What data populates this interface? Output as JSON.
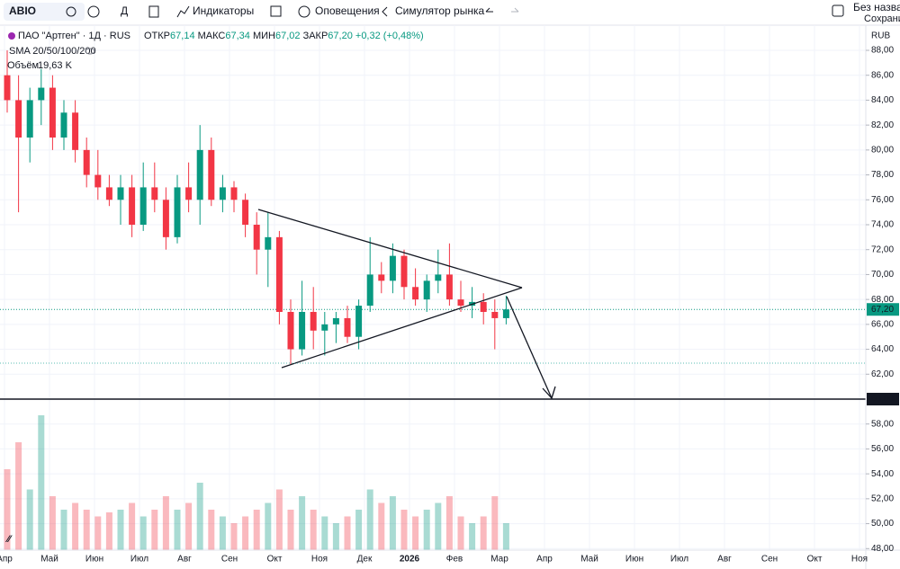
{
  "toolbar": {
    "symbol": "ABIO",
    "interval": "Д",
    "indicators": "Индикаторы",
    "alerts": "Оповещения",
    "replay": "Симулятор рынка",
    "layout_name": "Без названия",
    "layout_status": "Сохранить"
  },
  "chart_data": {
    "type": "candlestick",
    "title": "ПАО \"Артген\" · 1Д · RUS",
    "ohlc": [
      {
        "label": "ОТКР",
        "value": "67,14"
      },
      {
        "label": "МАКС",
        "value": "67,34"
      },
      {
        "label": "МИН",
        "value": "67,02"
      },
      {
        "label": "ЗАКР",
        "value": "67,20"
      }
    ],
    "change": "+0,32 (+0,48%)",
    "indicators": [
      "SMA 20/50/100/200"
    ],
    "volume_label": "Объём",
    "volume_last": "19,63 K",
    "currency": "RUB",
    "up_color": "#089981",
    "down_color": "#f23645",
    "categories": [
      "Апр",
      "Май",
      "Июн",
      "Июл",
      "Авг",
      "Сен",
      "Окт",
      "Ноя",
      "Дек",
      "2026",
      "Фев",
      "Мар",
      "Апр",
      "Май",
      "Июн",
      "Июл",
      "Авг",
      "Сен",
      "Окт",
      "Ноя"
    ],
    "open": [
      86,
      84,
      81,
      84,
      85,
      81,
      83,
      80,
      78,
      77,
      76,
      77,
      74,
      77,
      76,
      73,
      77,
      76,
      80,
      76,
      77,
      76,
      74,
      72,
      73,
      67,
      64,
      67,
      65.5,
      66,
      66.5,
      65,
      67.5,
      70,
      69.5,
      71.5,
      69,
      68,
      69.5,
      70,
      68,
      67.5,
      67.8,
      67,
      66.5
    ],
    "high": [
      88,
      86,
      85,
      86.5,
      86,
      84,
      84,
      81,
      80,
      78,
      78,
      78,
      79,
      79,
      77,
      78,
      79,
      82,
      81,
      78,
      77.5,
      76.5,
      75,
      75,
      73.5,
      68,
      69.5,
      69,
      67,
      67,
      67.5,
      68,
      73,
      71,
      72.5,
      72,
      70.5,
      70,
      72,
      72.5,
      69.5,
      69,
      68.5,
      68,
      68.3
    ],
    "low": [
      83,
      75,
      79,
      82,
      80,
      80,
      79,
      77,
      76,
      75.5,
      74,
      73,
      73.5,
      75,
      72,
      72.5,
      75,
      74,
      75.5,
      75,
      75,
      73,
      70,
      69,
      66,
      62.8,
      63.5,
      64,
      63.5,
      64.5,
      64.5,
      64,
      67,
      68.5,
      68.5,
      68,
      67.5,
      67,
      68.5,
      67.5,
      67,
      66.5,
      66,
      64,
      66
    ],
    "close": [
      84,
      81,
      84,
      85,
      81,
      83,
      80,
      78,
      77,
      76,
      77,
      74,
      77,
      76,
      73,
      77,
      76,
      80,
      76,
      77,
      76,
      74,
      72,
      73,
      67,
      64,
      67,
      65.5,
      66,
      66.5,
      65,
      67.5,
      70,
      69.5,
      71.5,
      69,
      68,
      69.5,
      70,
      68,
      67.5,
      67.8,
      67,
      66.5,
      67.2
    ],
    "volume": [
      60,
      80,
      45,
      100,
      40,
      30,
      35,
      30,
      25,
      28,
      30,
      35,
      25,
      30,
      40,
      30,
      35,
      50,
      30,
      25,
      20,
      25,
      30,
      35,
      45,
      30,
      40,
      30,
      25,
      20,
      25,
      30,
      45,
      35,
      40,
      30,
      25,
      30,
      35,
      40,
      25,
      20,
      25,
      40,
      20
    ],
    "ylim": [
      47.3,
      88
    ],
    "yticks": [
      {
        "value": 88,
        "label": "88,00"
      },
      {
        "value": 86,
        "label": "86,00"
      },
      {
        "value": 84,
        "label": "84,00"
      },
      {
        "value": 82,
        "label": "82,00"
      },
      {
        "value": 80,
        "label": "80,00"
      },
      {
        "value": 78,
        "label": "78,00"
      },
      {
        "value": 76,
        "label": "76,00"
      },
      {
        "value": 74,
        "label": "74,00"
      },
      {
        "value": 72,
        "label": "72,00"
      },
      {
        "value": 70,
        "label": "70,00"
      },
      {
        "value": 68,
        "label": "68,00"
      },
      {
        "value": 66,
        "label": "66,00"
      },
      {
        "value": 64,
        "label": "64,00"
      },
      {
        "value": 62,
        "label": "62,00"
      },
      {
        "value": 58,
        "label": "58,00"
      },
      {
        "value": 56,
        "label": "56,00"
      },
      {
        "value": 54,
        "label": "54,00"
      },
      {
        "value": 52,
        "label": "52,00"
      },
      {
        "value": 50,
        "label": "50,00"
      },
      {
        "value": 48,
        "label": "48,00"
      }
    ],
    "last_price": {
      "value": 67.2,
      "label": "67,20"
    },
    "level": {
      "value": 60,
      "label": "60,00"
    },
    "grid": true
  }
}
